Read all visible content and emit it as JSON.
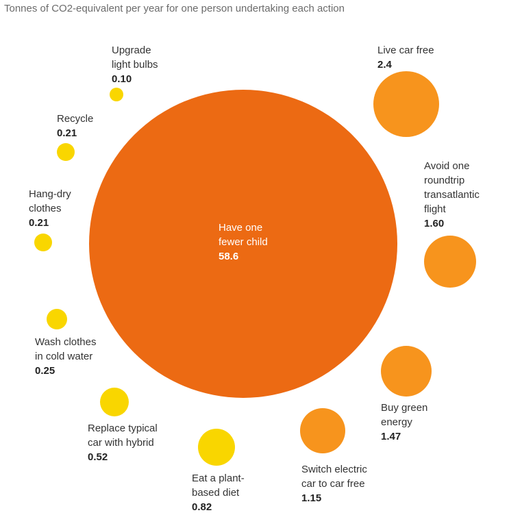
{
  "subtitle": "Tonnes of CO2-equivalent per year for one person undertaking each action",
  "colors": {
    "big": "#EC6A13",
    "orange": "#F7941D",
    "yellow": "#F9D600",
    "text": "#333333",
    "subtitle": "#6b6b6b"
  },
  "chart_data": {
    "type": "bubble",
    "title": "Tonnes of CO2-equivalent per year for one person undertaking each action",
    "unit": "Tonnes of CO2-equivalent per year",
    "items": [
      {
        "label": [
          "Have one",
          "fewer child"
        ],
        "value": "58.6",
        "color": "big"
      },
      {
        "label": [
          "Live car free"
        ],
        "value": "2.4",
        "color": "orange"
      },
      {
        "label": [
          "Avoid one",
          "roundtrip",
          "transatlantic",
          "flight"
        ],
        "value": "1.60",
        "color": "orange"
      },
      {
        "label": [
          "Buy green",
          "energy"
        ],
        "value": "1.47",
        "color": "orange"
      },
      {
        "label": [
          "Switch electric",
          "car to car free"
        ],
        "value": "1.15",
        "color": "orange"
      },
      {
        "label": [
          "Eat a plant-",
          "based diet"
        ],
        "value": "0.82",
        "color": "yellow"
      },
      {
        "label": [
          "Replace typical",
          "car with hybrid"
        ],
        "value": "0.52",
        "color": "yellow"
      },
      {
        "label": [
          "Wash clothes",
          "in cold water"
        ],
        "value": "0.25",
        "color": "yellow"
      },
      {
        "label": [
          "Hang-dry",
          "clothes"
        ],
        "value": "0.21",
        "color": "yellow"
      },
      {
        "label": [
          "Recycle"
        ],
        "value": "0.21",
        "color": "yellow"
      },
      {
        "label": [
          "Upgrade",
          "light bulbs"
        ],
        "value": "0.10",
        "color": "yellow"
      }
    ]
  }
}
